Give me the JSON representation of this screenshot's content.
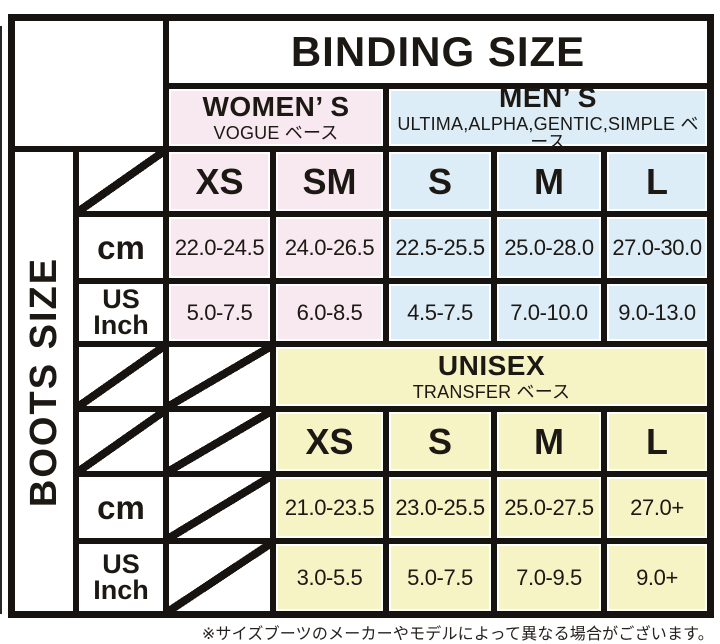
{
  "header": {
    "binding": "BINDING SIZE",
    "boots": "BOOTS SIZE"
  },
  "groups": {
    "womens": {
      "title": "WOMEN’ S",
      "subtitle": "VOGUE ベース"
    },
    "mens": {
      "title": "MEN’ S",
      "subtitle": "ULTIMA,ALPHA,GENTIC,SIMPLE ベース"
    },
    "unisex": {
      "title": "UNISEX",
      "subtitle": "TRANSFER ベース"
    }
  },
  "row_labels": {
    "cm": "cm",
    "us": "US",
    "inch": "Inch"
  },
  "upper": {
    "sizes": [
      "XS",
      "SM",
      "S",
      "M",
      "L"
    ],
    "cm": [
      "22.0-24.5",
      "24.0-26.5",
      "22.5-25.5",
      "25.0-28.0",
      "27.0-30.0"
    ],
    "us_inch": [
      "5.0-7.5",
      "6.0-8.5",
      "4.5-7.5",
      "7.0-10.0",
      "9.0-13.0"
    ]
  },
  "lower": {
    "sizes": [
      "XS",
      "S",
      "M",
      "L"
    ],
    "cm": [
      "21.0-23.5",
      "23.0-25.5",
      "25.0-27.5",
      "27.0+"
    ],
    "us_inch": [
      "3.0-5.5",
      "5.0-7.5",
      "7.0-9.5",
      "9.0+"
    ]
  },
  "note": "※サイズブーツのメーカーやモデルによって異なる場合がございます。",
  "colors": {
    "womens_pink": "#f8e8f0",
    "mens_blue": "#dcedf7",
    "unisex_yellow": "#f6f3c5",
    "line_black": "#171310"
  }
}
